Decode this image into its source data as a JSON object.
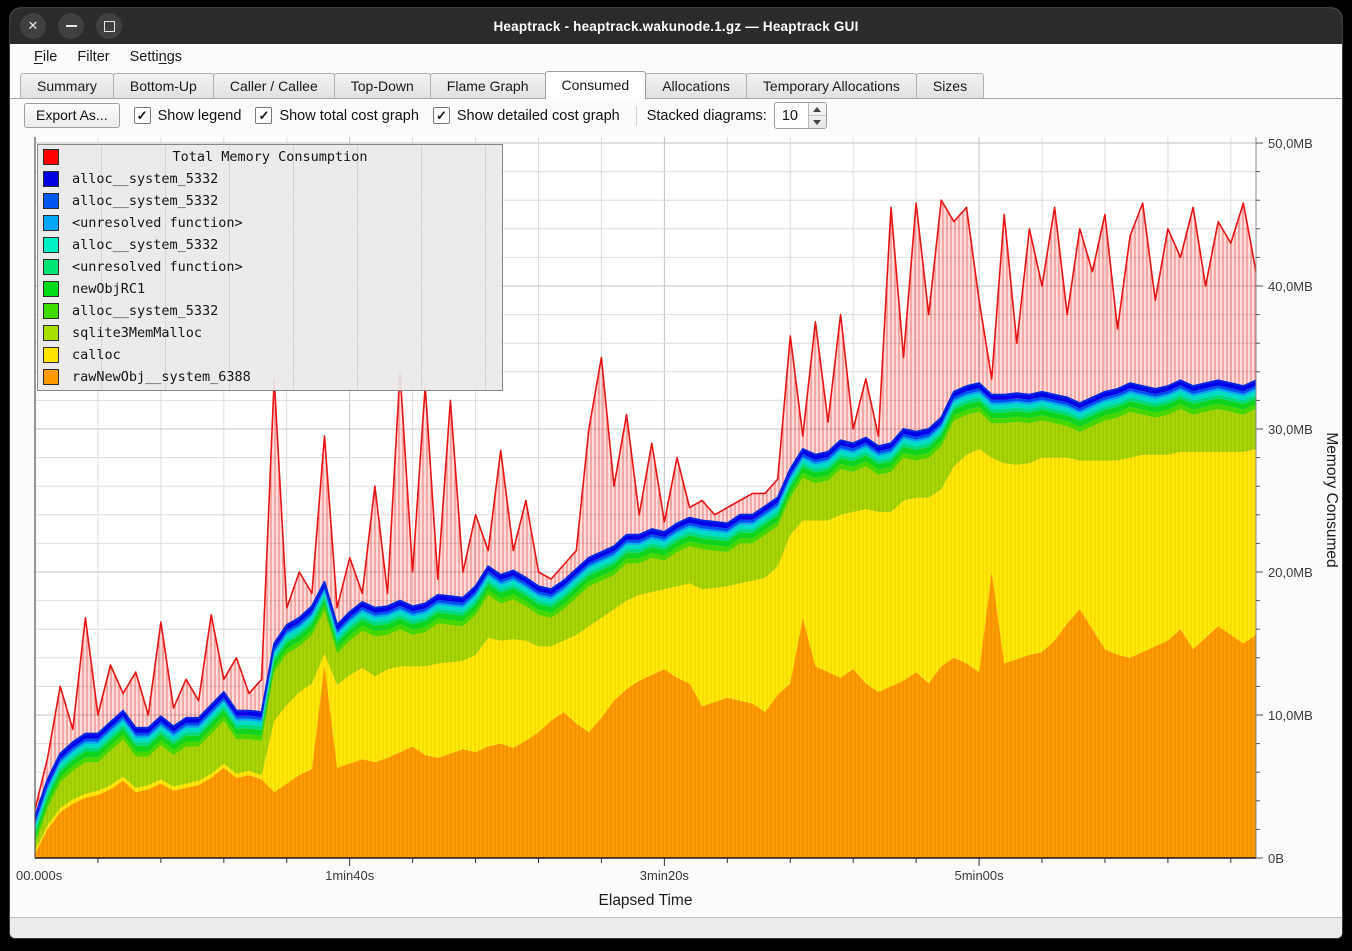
{
  "window": {
    "title": "Heaptrack - heaptrack.wakunode.1.gz — Heaptrack GUI",
    "buttons": [
      {
        "name": "close-button",
        "icon": "close-icon",
        "glyph": "✕"
      },
      {
        "name": "minimize-button",
        "icon": "minimize-icon",
        "glyph": "–"
      },
      {
        "name": "maximize-button",
        "icon": "maximize-icon",
        "glyph": "□"
      }
    ]
  },
  "menu": {
    "items": [
      {
        "label": "File",
        "accel": "F"
      },
      {
        "label": "Filter",
        "accel": ""
      },
      {
        "label": "Settings",
        "accel": "n"
      }
    ]
  },
  "tabs": {
    "items": [
      {
        "label": "Summary",
        "active": false
      },
      {
        "label": "Bottom-Up",
        "active": false
      },
      {
        "label": "Caller / Callee",
        "active": false
      },
      {
        "label": "Top-Down",
        "active": false
      },
      {
        "label": "Flame Graph",
        "active": false
      },
      {
        "label": "Consumed",
        "active": true
      },
      {
        "label": "Allocations",
        "active": false
      },
      {
        "label": "Temporary Allocations",
        "active": false
      },
      {
        "label": "Sizes",
        "active": false
      }
    ]
  },
  "toolbar": {
    "export_label": "Export As...",
    "checkboxes": [
      {
        "label": "Show legend",
        "checked": true
      },
      {
        "label": "Show total cost graph",
        "checked": true
      },
      {
        "label": "Show detailed cost graph",
        "checked": true
      }
    ],
    "stacked_label": "Stacked diagrams:",
    "stacked_value": "10"
  },
  "legend": {
    "items": [
      {
        "label": "Total Memory Consumption",
        "color": "#ff0000",
        "title": true
      },
      {
        "label": "alloc__system_5332",
        "color": "#0000e0",
        "title": false
      },
      {
        "label": "alloc__system_5332",
        "color": "#0057f0",
        "title": false
      },
      {
        "label": "<unresolved function>",
        "color": "#00a5f5",
        "title": false
      },
      {
        "label": "alloc__system_5332",
        "color": "#00f0c8",
        "title": false
      },
      {
        "label": "<unresolved function>",
        "color": "#00e673",
        "title": false
      },
      {
        "label": "newObjRC1",
        "color": "#00dc18",
        "title": false
      },
      {
        "label": "alloc__system_5332",
        "color": "#3fdc00",
        "title": false
      },
      {
        "label": "sqlite3MemMalloc",
        "color": "#aae000",
        "title": false
      },
      {
        "label": "calloc",
        "color": "#ffe500",
        "title": false
      },
      {
        "label": "rawNewObj__system_6388",
        "color": "#ff9a00",
        "title": false
      }
    ]
  },
  "chart_data": {
    "type": "area",
    "stacked": true,
    "title": "",
    "xlabel": "Elapsed Time",
    "ylabel": "Memory Consumed",
    "grid": true,
    "legend_position": "top-left overlay",
    "axes": {
      "x_start": 0,
      "x_step": 4,
      "x_max": 388,
      "x_minor_step": 20,
      "y_max": 50,
      "y_minor_step": 2,
      "y_unit": "MB",
      "x_ticks": [
        {
          "t": 0,
          "label": "00.000s"
        },
        {
          "t": 100,
          "label": "1min40s"
        },
        {
          "t": 200,
          "label": "3min20s"
        },
        {
          "t": 300,
          "label": "5min00s"
        }
      ],
      "y_ticks": [
        {
          "v": 0,
          "label": "0B"
        },
        {
          "v": 10,
          "label": "10,0MB"
        },
        {
          "v": 20,
          "label": "20,0MB"
        },
        {
          "v": 30,
          "label": "30,0MB"
        },
        {
          "v": 40,
          "label": "40,0MB"
        },
        {
          "v": 50,
          "label": "50,0MB"
        }
      ]
    },
    "series": [
      {
        "name": "rawNewObj__system_6388",
        "color": "#ff9d00",
        "hatch_color": "#ef8c00",
        "values": [
          0.3,
          2.0,
          3.2,
          3.8,
          4.2,
          4.4,
          4.8,
          5.4,
          4.6,
          4.8,
          5.2,
          4.7,
          4.9,
          5.1,
          5.6,
          6.3,
          5.6,
          5.8,
          5.5,
          4.6,
          5.2,
          5.8,
          6.2,
          13.5,
          6.3,
          6.6,
          6.9,
          6.7,
          7.0,
          7.4,
          7.8,
          7.2,
          7.0,
          7.3,
          7.6,
          7.4,
          7.8,
          8.0,
          7.7,
          8.2,
          8.8,
          9.6,
          10.2,
          9.4,
          8.8,
          9.8,
          11.0,
          11.8,
          12.4,
          12.8,
          13.2,
          12.6,
          12.2,
          10.6,
          10.9,
          11.2,
          11.0,
          10.8,
          10.2,
          11.4,
          12.2,
          16.8,
          13.4,
          13.0,
          12.6,
          13.2,
          12.2,
          11.6,
          12.0,
          12.4,
          13.0,
          12.2,
          13.4,
          14.0,
          13.6,
          13.0,
          20.0,
          13.6,
          13.9,
          14.2,
          14.4,
          15.2,
          16.4,
          17.4,
          16.0,
          14.6,
          14.2,
          14.0,
          14.4,
          14.8,
          15.2,
          16.0,
          14.6,
          15.4,
          16.2,
          15.6,
          15.0,
          15.6
        ]
      },
      {
        "name": "calloc",
        "color": "#ffe80a",
        "hatch_color": "#f1d800",
        "values": [
          0.2,
          0.3,
          0.3,
          0.3,
          0.3,
          0.3,
          0.3,
          0.3,
          0.3,
          0.3,
          0.3,
          0.3,
          0.3,
          0.3,
          0.3,
          0.3,
          0.3,
          0.3,
          0.3,
          5.0,
          5.5,
          5.8,
          6.0,
          0.8,
          5.8,
          6.2,
          6.4,
          6.0,
          6.2,
          6.0,
          5.6,
          6.2,
          6.6,
          6.4,
          6.2,
          6.8,
          7.6,
          7.2,
          7.6,
          7.0,
          6.0,
          5.2,
          5.0,
          6.2,
          7.4,
          7.0,
          6.4,
          6.2,
          6.0,
          5.8,
          5.6,
          6.4,
          7.0,
          8.2,
          8.0,
          7.8,
          8.2,
          8.6,
          9.4,
          9.0,
          10.4,
          6.8,
          10.2,
          10.6,
          11.4,
          11.0,
          12.2,
          12.6,
          12.2,
          12.6,
          12.2,
          13.0,
          12.4,
          13.4,
          14.6,
          15.6,
          8.0,
          14.0,
          13.6,
          13.4,
          13.6,
          12.8,
          11.6,
          10.4,
          11.8,
          13.2,
          13.6,
          14.0,
          13.8,
          13.4,
          13.0,
          12.4,
          13.8,
          13.0,
          12.2,
          12.8,
          13.4,
          13.0
        ]
      },
      {
        "name": "sqlite3MemMalloc",
        "color": "#a8d606",
        "hatch_color": "#99c405",
        "values": [
          0.4,
          1.2,
          1.8,
          2.0,
          2.2,
          2.0,
          2.4,
          2.6,
          2.2,
          2.0,
          2.4,
          2.2,
          2.6,
          2.4,
          2.8,
          3.0,
          2.4,
          2.2,
          2.4,
          3.4,
          3.6,
          3.2,
          3.4,
          3.0,
          2.2,
          2.4,
          2.6,
          2.8,
          2.4,
          2.6,
          2.2,
          2.4,
          2.8,
          2.6,
          2.4,
          2.8,
          3.0,
          2.6,
          2.8,
          2.4,
          2.2,
          2.0,
          2.2,
          2.6,
          2.8,
          2.6,
          2.4,
          2.6,
          2.2,
          2.4,
          2.0,
          2.4,
          2.6,
          2.8,
          2.6,
          2.4,
          2.8,
          2.6,
          3.0,
          2.8,
          2.6,
          3.0,
          2.6,
          2.8,
          3.2,
          2.8,
          3.0,
          2.6,
          2.8,
          3.0,
          2.6,
          2.8,
          3.0,
          3.2,
          2.8,
          2.6,
          2.4,
          2.8,
          3.0,
          2.8,
          2.6,
          2.4,
          2.2,
          2.0,
          2.4,
          2.8,
          3.0,
          3.2,
          2.8,
          2.6,
          2.8,
          3.0,
          2.6,
          2.8,
          3.0,
          2.8,
          2.6,
          2.8
        ]
      },
      {
        "name": "alloc__system_5332",
        "color": "#45d800",
        "values": 0.35
      },
      {
        "name": "newObjRC1",
        "color": "#0fd41e",
        "values": 0.4
      },
      {
        "name": "<unresolved function>",
        "color": "#00dc7d",
        "values": 0.25
      },
      {
        "name": "alloc__system_5332",
        "color": "#00dcc8",
        "values": 0.3
      },
      {
        "name": "<unresolved function>",
        "color": "#00a8f0",
        "values": 0.15
      },
      {
        "name": "alloc__system_5332",
        "color": "#0050f0",
        "values": 0.2
      },
      {
        "name": "alloc__system_5332",
        "color": "#0000e8",
        "values": 0.35
      }
    ],
    "stack_top_line_color": "#0028e0",
    "total": {
      "name": "Total Memory Consumption",
      "line_color": "#e81414",
      "fill_color": "rgba(255,60,60,0.18)",
      "hatch_color": "rgba(230,40,40,0.45)",
      "values": [
        3.4,
        7.0,
        12.0,
        9.0,
        16.8,
        10.0,
        13.5,
        11.5,
        13.0,
        10.0,
        16.5,
        10.5,
        12.5,
        11.0,
        17.0,
        12.5,
        14.0,
        11.5,
        12.5,
        33.5,
        17.5,
        20.0,
        18.5,
        29.5,
        17.5,
        21.0,
        18.5,
        26.0,
        18.5,
        34.0,
        20.0,
        33.0,
        19.5,
        32.0,
        20.0,
        24.0,
        21.5,
        28.5,
        21.5,
        25.0,
        20.0,
        19.5,
        20.5,
        21.5,
        30.0,
        35.0,
        26.0,
        31.0,
        24.0,
        29.0,
        23.5,
        28.0,
        24.5,
        25.0,
        24.0,
        24.5,
        25.0,
        25.5,
        25.5,
        26.5,
        36.5,
        29.5,
        37.5,
        30.5,
        38.0,
        30.0,
        33.5,
        29.5,
        45.5,
        35.0,
        45.8,
        38.0,
        46.0,
        44.5,
        45.5,
        39.0,
        33.5,
        45.0,
        36.0,
        44.0,
        40.0,
        45.5,
        38.0,
        44.0,
        41.0,
        45.0,
        37.0,
        43.5,
        45.8,
        39.0,
        44.0,
        42.0,
        45.5,
        40.0,
        44.5,
        43.0,
        45.8,
        41.0
      ]
    }
  }
}
